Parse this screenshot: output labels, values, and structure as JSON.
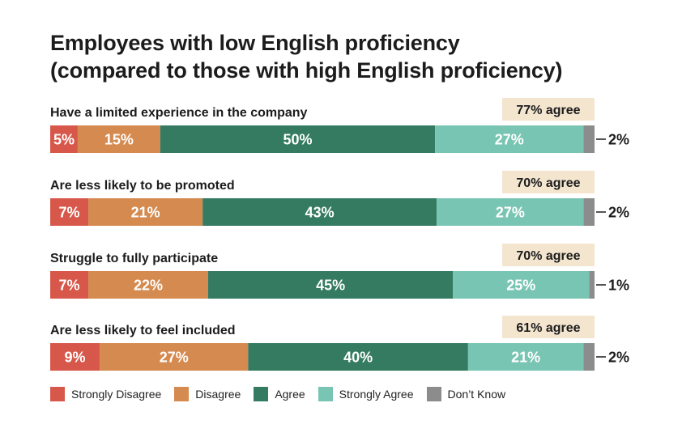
{
  "title_lines": [
    "Employees with low English proficiency",
    "(compared to those with high English proficiency)"
  ],
  "colors": {
    "strongly_disagree": "#D7584B",
    "disagree": "#D58A4F",
    "agree": "#357B62",
    "strongly_agree": "#79C5B3",
    "dont_know": "#8C8C8C",
    "agree_badge": "#F4E5CF"
  },
  "chart_data": {
    "type": "bar",
    "orientation": "horizontal-stacked-100",
    "categories": [
      "Have a limited experience in the company",
      "Are less likely to be promoted",
      "Struggle to fully participate",
      "Are less likely to feel included"
    ],
    "series": [
      {
        "name": "Strongly Disagree",
        "values": [
          5,
          7,
          7,
          9
        ]
      },
      {
        "name": "Disagree",
        "values": [
          15,
          21,
          22,
          27
        ]
      },
      {
        "name": "Agree",
        "values": [
          50,
          43,
          45,
          40
        ]
      },
      {
        "name": "Strongly Agree",
        "values": [
          27,
          27,
          25,
          21
        ]
      },
      {
        "name": "Don’t Know",
        "values": [
          2,
          2,
          1,
          2
        ]
      }
    ],
    "value_labels": [
      [
        "5%",
        "15%",
        "50%",
        "27%",
        "2%"
      ],
      [
        "7%",
        "21%",
        "43%",
        "27%",
        "2%"
      ],
      [
        "7%",
        "22%",
        "45%",
        "25%",
        "1%"
      ],
      [
        "9%",
        "27%",
        "40%",
        "21%",
        "2%"
      ]
    ],
    "agree_totals": [
      "77% agree",
      "70% agree",
      "70% agree",
      "61% agree"
    ],
    "legend": [
      "Strongly Disagree",
      "Disagree",
      "Agree",
      "Strongly Agree",
      "Don’t Know"
    ],
    "legend_position": "bottom",
    "grid": false
  }
}
